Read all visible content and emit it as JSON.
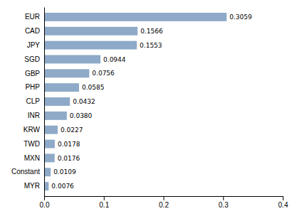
{
  "chart_data": {
    "type": "bar",
    "orientation": "horizontal",
    "categories": [
      "EUR",
      "CAD",
      "JPY",
      "SGD",
      "GBP",
      "PHP",
      "CLP",
      "INR",
      "KRW",
      "TWD",
      "MXN",
      "Constant",
      "MYR"
    ],
    "values": [
      0.3059,
      0.1566,
      0.1553,
      0.0944,
      0.0756,
      0.0585,
      0.0432,
      0.038,
      0.0227,
      0.0178,
      0.0176,
      0.0109,
      0.0076
    ],
    "value_labels": [
      "0.3059",
      "0.1566",
      "0.1553",
      "0.0944",
      "0.0756",
      "0.0585",
      "0.0432",
      "0.0380",
      "0.0227",
      "0.0178",
      "0.0176",
      "0.0109",
      "0.0076"
    ],
    "color": "#8eaac8",
    "xlim": [
      0,
      0.4
    ],
    "xticks": [
      {
        "value": 0,
        "label": "0.0"
      },
      0.1,
      0.2,
      0.3,
      0.4
    ],
    "data_labels": true,
    "grid": false
  }
}
